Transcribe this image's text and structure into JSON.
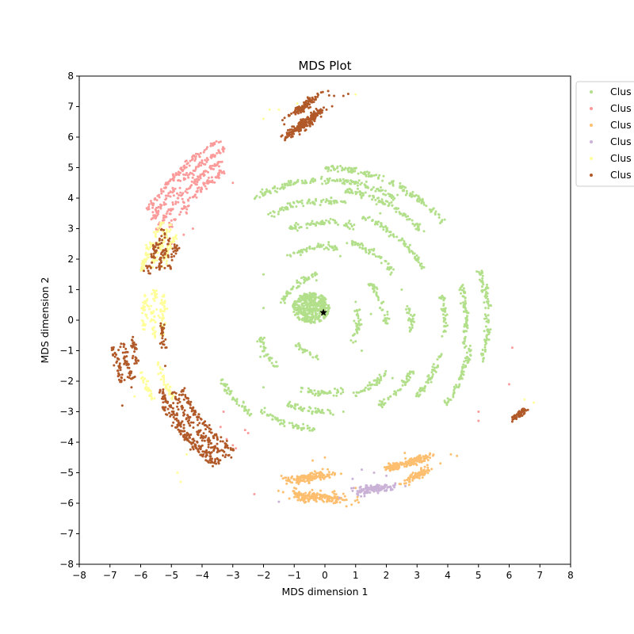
{
  "chart_data": {
    "type": "scatter",
    "title": "MDS Plot",
    "xlabel": "MDS dimension 1",
    "ylabel": "MDS dimension 2",
    "xlim": [
      -8,
      8
    ],
    "ylim": [
      -8,
      8
    ],
    "xticks": [
      -8,
      -7,
      -6,
      -5,
      -4,
      -3,
      -2,
      -1,
      0,
      1,
      2,
      3,
      4,
      5,
      6,
      7,
      8
    ],
    "yticks": [
      -8,
      -7,
      -6,
      -5,
      -4,
      -3,
      -2,
      -1,
      0,
      1,
      2,
      3,
      4,
      5,
      6,
      7,
      8
    ],
    "grid": false,
    "legend_position": "upper right, outside plot (clipped)",
    "legend_labels": [
      "Clus",
      "Clus",
      "Clus",
      "Clus",
      "Clus",
      "Clus"
    ],
    "marker": {
      "x": -0.05,
      "y": 0.25,
      "symbol": "star",
      "color": "#000000"
    },
    "series": [
      {
        "color": "#b2df8a",
        "dense_blob": {
          "cx": -0.45,
          "cy": 0.4,
          "rx": 0.6,
          "ry": 0.5
        },
        "arcs": [
          {
            "r": 5.0,
            "a0": 40,
            "a1": 90
          },
          {
            "r": 4.6,
            "a0": 60,
            "a1": 120
          },
          {
            "r": 4.3,
            "a0": 42,
            "a1": 82
          },
          {
            "r": 3.9,
            "a0": 80,
            "a1": 118
          },
          {
            "r": 3.6,
            "a0": 28,
            "a1": 70
          },
          {
            "r": 3.2,
            "a0": 72,
            "a1": 112
          },
          {
            "r": 2.7,
            "a0": 35,
            "a1": 75
          },
          {
            "r": 2.4,
            "a0": 80,
            "a1": 120
          },
          {
            "r": 5.3,
            "a0": -15,
            "a1": 18
          },
          {
            "r": 4.6,
            "a0": -12,
            "a1": 15
          },
          {
            "r": 3.9,
            "a0": -8,
            "a1": 12
          },
          {
            "r": 2.8,
            "a0": -8,
            "a1": 10
          },
          {
            "r": 2.0,
            "a0": -5,
            "a1": 8
          },
          {
            "r": 4.8,
            "a0": -35,
            "a1": -10
          },
          {
            "r": 3.9,
            "a0": -40,
            "a1": -15
          },
          {
            "r": 3.3,
            "a0": -60,
            "a1": -30
          },
          {
            "r": 2.6,
            "a0": -70,
            "a1": -40
          },
          {
            "r": 2.4,
            "a0": -110,
            "a1": -75
          },
          {
            "r": 3.0,
            "a0": -115,
            "a1": -85
          },
          {
            "r": 3.6,
            "a0": -125,
            "a1": -95
          },
          {
            "r": 3.9,
            "a0": -150,
            "a1": -128
          },
          {
            "r": 2.2,
            "a0": -165,
            "a1": -135
          },
          {
            "r": 1.5,
            "a0": 100,
            "a1": 160
          },
          {
            "r": 1.1,
            "a0": -40,
            "a1": 20
          },
          {
            "r": 1.9,
            "a0": 10,
            "a1": 40
          },
          {
            "r": 1.2,
            "a0": -140,
            "a1": -100
          }
        ],
        "scatter_points": [
          [
            -2.2,
            -0.7
          ],
          [
            -2.1,
            -1.2
          ],
          [
            -2.0,
            1.5
          ],
          [
            -2.0,
            0.4
          ],
          [
            -2.0,
            -2.2
          ],
          [
            1.0,
            0.6
          ],
          [
            1.5,
            0.2
          ],
          [
            2.5,
            1.0
          ],
          [
            0.5,
            2.1
          ],
          [
            -0.8,
            -0.9
          ],
          [
            1.2,
            -1.0
          ],
          [
            0.7,
            3.1
          ],
          [
            1.8,
            3.5
          ],
          [
            0.6,
            -3.0
          ],
          [
            2.2,
            -1.9
          ]
        ]
      },
      {
        "color": "#fb9a99",
        "arcs": [
          {
            "r": 6.8,
            "a0": 120,
            "a1": 148
          },
          {
            "r": 6.5,
            "a0": 120,
            "a1": 150
          },
          {
            "r": 6.2,
            "a0": 122,
            "a1": 152
          },
          {
            "r": 5.9,
            "a0": 124,
            "a1": 150
          }
        ],
        "scatter_points": [
          [
            -4.5,
            3.5
          ],
          [
            -4.3,
            3.0
          ],
          [
            -3.0,
            4.5
          ],
          [
            -5.0,
            2.5
          ],
          [
            -4.6,
            2.8
          ],
          [
            6.1,
            -0.9
          ],
          [
            6.0,
            -2.1
          ],
          [
            5.0,
            -3.0
          ],
          [
            5.0,
            -3.3
          ],
          [
            -3.3,
            -3.0
          ],
          [
            -3.2,
            -3.9
          ],
          [
            -3.0,
            -4.1
          ],
          [
            -2.9,
            -4.2
          ],
          [
            -3.4,
            -3.5
          ],
          [
            -2.3,
            -5.7
          ],
          [
            -2.5,
            -3.7
          ],
          [
            -2.6,
            -3.6
          ]
        ]
      },
      {
        "color": "#fdbf6f",
        "clusters": [
          {
            "cx": -0.2,
            "cy": -5.8,
            "rx": 1.0,
            "ry": 0.17,
            "rot": -5
          },
          {
            "cx": -0.5,
            "cy": -5.15,
            "rx": 0.9,
            "ry": 0.14,
            "rot": 8
          },
          {
            "cx": 3.0,
            "cy": -5.1,
            "rx": 0.45,
            "ry": 0.12,
            "rot": 25
          },
          {
            "cx": 2.9,
            "cy": -4.6,
            "rx": 0.65,
            "ry": 0.12,
            "rot": 18
          },
          {
            "cx": 2.2,
            "cy": -4.8,
            "rx": 0.25,
            "ry": 0.1,
            "rot": 10
          }
        ],
        "scatter_points": [
          [
            4.1,
            -4.4
          ],
          [
            4.3,
            -4.45
          ],
          [
            -0.4,
            -4.6
          ],
          [
            0.0,
            -4.5
          ],
          [
            1.0,
            -5.5
          ],
          [
            0.7,
            -6.1
          ],
          [
            2.6,
            -4.35
          ]
        ]
      },
      {
        "color": "#cab2d6",
        "clusters": [
          {
            "cx": 1.55,
            "cy": -5.55,
            "rx": 0.65,
            "ry": 0.14,
            "rot": 8
          }
        ],
        "scatter_points": [
          [
            1.2,
            -4.9
          ],
          [
            1.6,
            -5.0
          ],
          [
            2.0,
            -5.1
          ],
          [
            -1.5,
            -5.95
          ],
          [
            0.9,
            -5.2
          ]
        ]
      },
      {
        "color": "#ffff99",
        "arcs": [
          {
            "r": 6.2,
            "a0": 148,
            "a1": 165
          },
          {
            "r": 5.9,
            "a0": 148,
            "a1": 163
          },
          {
            "r": 5.6,
            "a0": 150,
            "a1": 162
          },
          {
            "r": 5.6,
            "a0": 170,
            "a1": 186
          },
          {
            "r": 5.3,
            "a0": 171,
            "a1": 186
          },
          {
            "r": 5.9,
            "a0": 172,
            "a1": 183
          },
          {
            "r": 5.6,
            "a0": 194,
            "a1": 208
          },
          {
            "r": 6.2,
            "a0": 196,
            "a1": 205
          }
        ],
        "scatter_points": [
          [
            -1.8,
            6.9
          ],
          [
            -1.5,
            6.9
          ],
          [
            -0.9,
            7.1
          ],
          [
            -0.5,
            7.2
          ],
          [
            1.0,
            7.4
          ],
          [
            -2.0,
            6.6
          ],
          [
            -4.7,
            -5.3
          ],
          [
            -4.8,
            -5.0
          ],
          [
            6.5,
            -2.6
          ],
          [
            6.8,
            -2.7
          ],
          [
            -6.2,
            -2.5
          ],
          [
            -4.5,
            -4.4
          ]
        ]
      },
      {
        "color": "#b15928",
        "arcs": [
          {
            "r": 5.8,
            "a0": 203,
            "a1": 234
          },
          {
            "r": 5.5,
            "a0": 205,
            "a1": 236
          },
          {
            "r": 5.2,
            "a0": 206,
            "a1": 236
          },
          {
            "r": 5.95,
            "a0": 208,
            "a1": 233
          },
          {
            "r": 6.0,
            "a0": 150,
            "a1": 165
          },
          {
            "r": 5.7,
            "a0": 152,
            "a1": 163
          },
          {
            "r": 5.4,
            "a0": 153,
            "a1": 162
          },
          {
            "r": 6.9,
            "a0": 187,
            "a1": 197
          },
          {
            "r": 6.6,
            "a0": 186,
            "a1": 197
          },
          {
            "r": 6.3,
            "a0": 185,
            "a1": 193
          },
          {
            "r": 5.3,
            "a0": 181,
            "a1": 190
          }
        ],
        "clusters": [
          {
            "cx": -0.7,
            "cy": 7.0,
            "rx": 0.7,
            "ry": 0.12,
            "rot": 35
          },
          {
            "cx": -0.5,
            "cy": 6.6,
            "rx": 0.7,
            "ry": 0.12,
            "rot": 35
          },
          {
            "cx": -0.8,
            "cy": 6.3,
            "rx": 0.6,
            "ry": 0.12,
            "rot": 30
          },
          {
            "cx": 6.3,
            "cy": -3.1,
            "rx": 0.3,
            "ry": 0.08,
            "rot": 35
          }
        ],
        "scatter_points": [
          [
            0.3,
            7.35
          ],
          [
            0.6,
            7.35
          ],
          [
            -1.1,
            6.0
          ],
          [
            -1.3,
            5.9
          ],
          [
            -6.6,
            -2.8
          ],
          [
            -6.3,
            -2.2
          ],
          [
            -5.2,
            -1.5
          ]
        ]
      }
    ]
  }
}
